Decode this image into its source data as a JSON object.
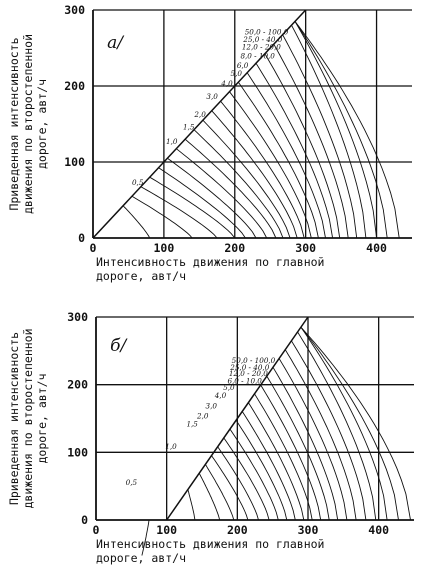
{
  "chart_data": [
    {
      "type": "line",
      "panel_label": "a/",
      "xlabel_lines": [
        "Интенсивность движения по главной",
        "дороге, авт/ч"
      ],
      "ylabel_lines": [
        "Приведенная интенсивность",
        "движения по второстепенной",
        "дороге, авт/ч"
      ],
      "xlim": [
        0,
        450
      ],
      "ylim": [
        0,
        300
      ],
      "x_ticks": [
        0,
        100,
        200,
        300,
        400
      ],
      "y_ticks": [
        0,
        100,
        200,
        300
      ],
      "grid": true,
      "diagonal_x_intercept": 0,
      "diagonal_top_x": 300,
      "curve_x_bases": [
        80,
        140,
        175,
        200,
        215,
        230,
        245,
        258,
        268,
        278,
        288,
        298,
        308,
        318,
        328,
        338,
        348,
        360,
        372,
        385,
        400,
        415,
        432
      ],
      "curve_levels": [
        {
          "label": "0,5",
          "x": 55,
          "y": 70
        },
        {
          "label": "1,0",
          "x": 103,
          "y": 124
        },
        {
          "label": "1,5",
          "x": 127,
          "y": 143
        },
        {
          "label": "2,0",
          "x": 143,
          "y": 159
        },
        {
          "label": "3,0",
          "x": 160,
          "y": 183
        },
        {
          "label": "4,0",
          "x": 181,
          "y": 200
        },
        {
          "label": "5,0",
          "x": 194,
          "y": 213
        },
        {
          "label": "6,0",
          "x": 203,
          "y": 224
        },
        {
          "label": "8,0 - 10,0",
          "x": 208,
          "y": 236
        },
        {
          "label": "12,0 - 20,0",
          "x": 210,
          "y": 248
        },
        {
          "label": "25,0 - 40,0",
          "x": 212,
          "y": 258
        },
        {
          "label": "50,0 - 100,0",
          "x": 214,
          "y": 268
        }
      ]
    },
    {
      "type": "line",
      "panel_label": "б/",
      "xlabel_lines": [
        "Интенсивность движения по главной",
        "дороге, авт/ч"
      ],
      "ylabel_lines": [
        "Приведенная интенсивность",
        "движения по второстепенной",
        "дороге, авт/ч"
      ],
      "xlim": [
        0,
        450
      ],
      "ylim": [
        0,
        300
      ],
      "x_ticks": [
        0,
        100,
        200,
        300,
        400
      ],
      "y_ticks": [
        0,
        100,
        200,
        300
      ],
      "grid": true,
      "diagonal_x_intercept": 100,
      "diagonal_top_x": 300,
      "curve_x_bases": [
        75,
        140,
        175,
        195,
        215,
        230,
        245,
        258,
        270,
        282,
        294,
        306,
        318,
        330,
        342,
        355,
        368,
        382,
        396,
        412,
        428,
        445
      ],
      "curve_levels": [
        {
          "label": "0,5",
          "x": 42,
          "y": 52
        },
        {
          "label": "1,0",
          "x": 98,
          "y": 105
        },
        {
          "label": "1,5",
          "x": 128,
          "y": 138
        },
        {
          "label": "2,0",
          "x": 143,
          "y": 150
        },
        {
          "label": "3,0",
          "x": 155,
          "y": 165
        },
        {
          "label": "4,0",
          "x": 168,
          "y": 180
        },
        {
          "label": "5,0",
          "x": 180,
          "y": 192
        },
        {
          "label": "6,0 - 10,0",
          "x": 186,
          "y": 202
        },
        {
          "label": "12,0 - 20,0",
          "x": 188,
          "y": 213
        },
        {
          "label": "25,0 - 40,0",
          "x": 190,
          "y": 222
        },
        {
          "label": "50,0 - 100,0",
          "x": 192,
          "y": 232
        }
      ]
    }
  ]
}
